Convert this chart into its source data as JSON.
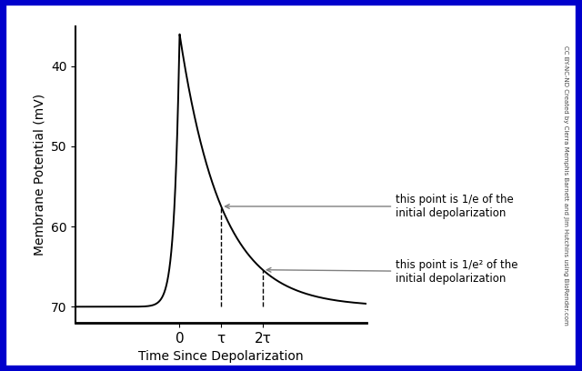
{
  "xlabel": "Time Since Depolarization",
  "ylabel": "Membrane Potential (mV)",
  "background_color": "#ffffff",
  "border_color": "#0000cc",
  "yticks": [
    40,
    50,
    60,
    70
  ],
  "ylim_top": 35,
  "ylim_bottom": 72,
  "resting_potential": 70,
  "peak_potential": 36,
  "tau_label": "τ",
  "two_tau_label": "2τ",
  "zero_label": "0",
  "annotation1": "this point is 1/e of the\ninitial depolarization",
  "annotation2": "this point is 1/e² of the\ninitial depolarization",
  "watermark": "CC BY-NC-ND Created by Cierra Memphis Barnett and Jim Hutchins using BioRender.com",
  "border_lw": 6,
  "xlim_left": -2.5,
  "xlim_right": 4.5,
  "k_rise": 8.0,
  "tau": 1.0
}
